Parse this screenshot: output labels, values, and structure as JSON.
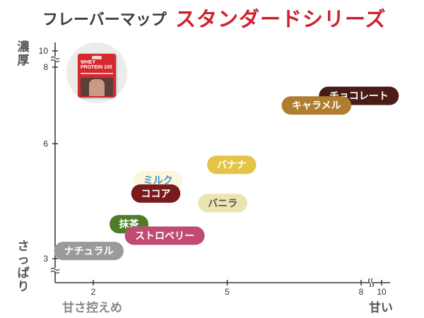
{
  "title": {
    "main": "フレーバーマップ",
    "series": "スタンダードシリーズ"
  },
  "axis_labels": {
    "y_top": "濃厚",
    "y_bottom": "さっぱり",
    "x_left": "甘さ控えめ",
    "x_right": "甘い"
  },
  "product_image": {
    "brand_line1": "WHEY",
    "brand_line2": "PROTEIN 100"
  },
  "colors": {
    "title_main": "#3a3a3a",
    "title_series": "#d0202c",
    "axis": "#333333"
  },
  "chart_data": {
    "type": "scatter",
    "title": "",
    "xlabel": "",
    "ylabel": "",
    "x_ticks": [
      2,
      5,
      8,
      10
    ],
    "y_ticks": [
      3,
      6,
      8,
      10
    ],
    "axis_breaks": {
      "x": "between 8 and 10",
      "y": "between 8 and 10, and below 3"
    },
    "grid": false,
    "legend": "none",
    "points": [
      {
        "label": "チョコレート",
        "x": 7.95,
        "y": 7.25,
        "bg": "#4a1c16",
        "fg": "#ffffff"
      },
      {
        "label": "キャラメル",
        "x": 7.0,
        "y": 7.0,
        "bg": "#b07d2e",
        "fg": "#ffffff"
      },
      {
        "label": "バナナ",
        "x": 5.1,
        "y": 5.45,
        "bg": "#e3c444",
        "fg": "#ffffff"
      },
      {
        "label": "ミルク",
        "x": 3.45,
        "y": 5.05,
        "bg": "#fbf6dd",
        "fg": "#3f96c4"
      },
      {
        "label": "ココア",
        "x": 3.4,
        "y": 4.7,
        "bg": "#7a1a1c",
        "fg": "#ffffff"
      },
      {
        "label": "バニラ",
        "x": 4.9,
        "y": 4.45,
        "bg": "#ece4b0",
        "fg": "#555555"
      },
      {
        "label": "抹茶",
        "x": 2.8,
        "y": 3.9,
        "bg": "#4e7d2a",
        "fg": "#ffffff"
      },
      {
        "label": "ストロベリー",
        "x": 3.6,
        "y": 3.6,
        "bg": "#c14b74",
        "fg": "#ffffff"
      },
      {
        "label": "ナチュラル",
        "x": 1.9,
        "y": 3.2,
        "bg": "#9a9a9a",
        "fg": "#ffffff"
      }
    ]
  }
}
